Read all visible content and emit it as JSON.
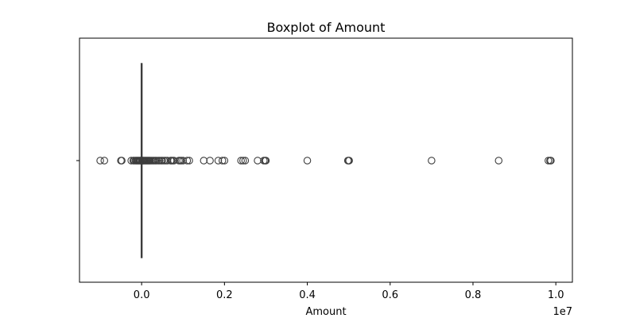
{
  "chart_data": {
    "type": "box",
    "title": "Boxplot of Amount",
    "xlabel": "Amount",
    "ylabel": "",
    "x_offset_label": "1e7",
    "xlim": [
      -1500000,
      10400000
    ],
    "x_ticks": [
      {
        "value": 0,
        "label": "0.0"
      },
      {
        "value": 2000000,
        "label": "0.2"
      },
      {
        "value": 4000000,
        "label": "0.4"
      },
      {
        "value": 6000000,
        "label": "0.6"
      },
      {
        "value": 8000000,
        "label": "0.8"
      },
      {
        "value": 10000000,
        "label": "1.0"
      }
    ],
    "box": {
      "q1": 0,
      "median": 0,
      "q3": 0,
      "whisker_low": 0,
      "whisker_high": 0
    },
    "outliers": [
      -1000000,
      -900000,
      -500000,
      -480000,
      -250000,
      -200000,
      -180000,
      -150000,
      -130000,
      -110000,
      -90000,
      -70000,
      -50000,
      -30000,
      -20000,
      20000,
      30000,
      50000,
      70000,
      90000,
      110000,
      130000,
      150000,
      170000,
      190000,
      210000,
      240000,
      270000,
      300000,
      330000,
      360000,
      400000,
      430000,
      470000,
      500000,
      540000,
      580000,
      620000,
      700000,
      720000,
      750000,
      780000,
      900000,
      930000,
      960000,
      1000000,
      1100000,
      1150000,
      1500000,
      1650000,
      1850000,
      1950000,
      2000000,
      2400000,
      2450000,
      2500000,
      2800000,
      2950000,
      2980000,
      3000000,
      4000000,
      4980000,
      5000000,
      5010000,
      7000000,
      8620000,
      9820000,
      9860000,
      9880000
    ],
    "grid": false,
    "colors": {
      "box_line": "#3d3d3d",
      "axis": "#000000",
      "marker_edge": "#3d3d3d"
    }
  }
}
